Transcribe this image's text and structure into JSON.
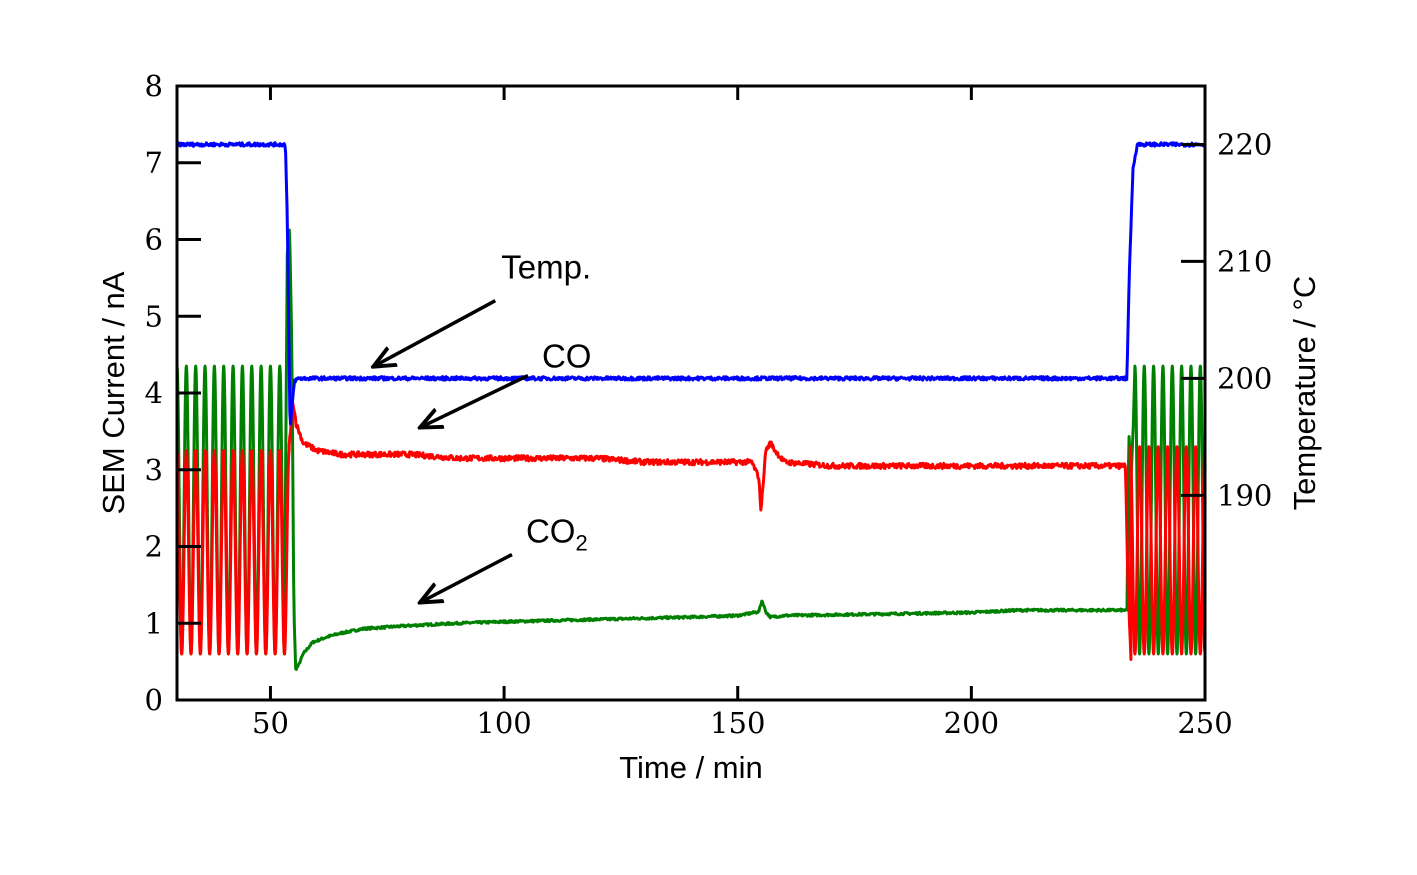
{
  "chart_data": {
    "type": "line",
    "xlabel": "Time / min",
    "ylabel_left": "SEM Current / nA",
    "ylabel_right": "Temperature / °C",
    "xlim": [
      30,
      250
    ],
    "ylim_left": [
      0,
      8
    ],
    "ylim_right": [
      172.5,
      225
    ],
    "x_ticks": [
      50,
      100,
      150,
      200,
      250
    ],
    "y_left_ticks": [
      0,
      1,
      2,
      3,
      4,
      5,
      6,
      7,
      8
    ],
    "y_right_ticks": [
      190,
      200,
      210,
      220
    ],
    "grid": false,
    "colors": {
      "temp": "#0000ff",
      "co": "#ff0000",
      "co2": "#008000",
      "axes": "#000000"
    },
    "series": [
      {
        "name": "Temp.",
        "axis": "right",
        "x": [
          30,
          53.2,
          53.6,
          54.2,
          54.8,
          55.2,
          56,
          233.3,
          233.8,
          234.6,
          235.5,
          250
        ],
        "y": [
          220,
          220,
          214,
          195.5,
          198.5,
          199.8,
          200,
          200,
          209,
          218,
          220,
          220
        ]
      },
      {
        "name": "CO",
        "axis": "left",
        "pulse_phase": {
          "x_range": [
            30,
            54
          ],
          "period_min": 2,
          "low": 0.6,
          "high": 3.25
        },
        "x": [
          54,
          54.8,
          55.5,
          57,
          60,
          65,
          70,
          75,
          80,
          90,
          100,
          110,
          120,
          130,
          140,
          150,
          153,
          154.5,
          155,
          155.4,
          156,
          157,
          158,
          160,
          170,
          180,
          190,
          200,
          210,
          220,
          230,
          233,
          233.5,
          234.2
        ],
        "y": [
          3.3,
          3.9,
          3.6,
          3.35,
          3.25,
          3.2,
          3.2,
          3.2,
          3.2,
          3.15,
          3.15,
          3.15,
          3.15,
          3.1,
          3.1,
          3.1,
          3.1,
          2.9,
          2.45,
          2.8,
          3.25,
          3.35,
          3.25,
          3.1,
          3.05,
          3.05,
          3.05,
          3.05,
          3.05,
          3.05,
          3.05,
          3.05,
          1.5,
          0.45
        ],
        "pulse_phase_end": {
          "x_range": [
            234,
            250
          ],
          "period_min": 2,
          "low": 0.6,
          "high": 3.3
        }
      },
      {
        "name": "CO₂",
        "axis": "left",
        "pulse_phase": {
          "x_range": [
            30,
            53
          ],
          "period_min": 2,
          "low": 0.6,
          "high": 4.35
        },
        "x": [
          53,
          53.6,
          54.1,
          54.6,
          55,
          55.4,
          56,
          57,
          59,
          62,
          65,
          70,
          80,
          90,
          100,
          120,
          140,
          150,
          154.5,
          155.2,
          156,
          157,
          160,
          180,
          200,
          210,
          220,
          230,
          233.3,
          233.7,
          234.2,
          234.8
        ],
        "y": [
          1.0,
          5.8,
          6.15,
          4.5,
          1.2,
          0.4,
          0.45,
          0.6,
          0.75,
          0.82,
          0.87,
          0.93,
          0.97,
          1.0,
          1.02,
          1.05,
          1.08,
          1.1,
          1.15,
          1.3,
          1.15,
          1.08,
          1.1,
          1.12,
          1.14,
          1.17,
          1.17,
          1.17,
          1.17,
          3.5,
          2.9,
          3.8
        ],
        "pulse_phase_end": {
          "x_range": [
            235,
            250
          ],
          "period_min": 2,
          "low": 0.6,
          "high": 4.35
        }
      }
    ],
    "annotations": [
      {
        "text": "Temp.",
        "points_to": {
          "x": 72,
          "y_axis": "right",
          "y": 201
        }
      },
      {
        "text": "CO",
        "points_to": {
          "x": 82,
          "y_axis": "left",
          "y": 3.55
        }
      },
      {
        "text_main": "CO",
        "text_sub": "2",
        "points_to": {
          "x": 82,
          "y_axis": "left",
          "y": 1.27
        }
      }
    ]
  }
}
